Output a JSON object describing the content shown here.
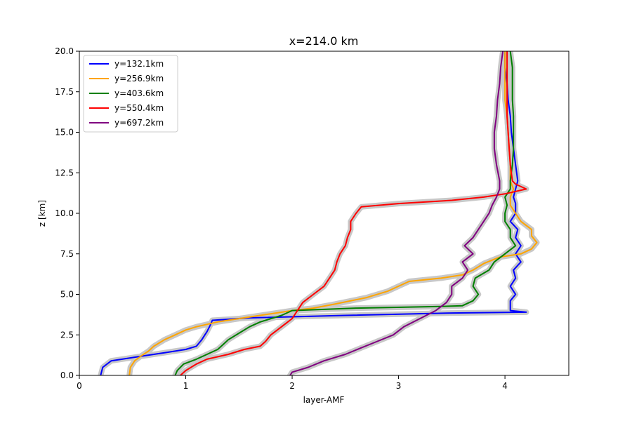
{
  "chart_data": {
    "type": "line",
    "title": "x=214.0 km",
    "xlabel": "layer-AMF",
    "ylabel": "z [km]",
    "xlim": [
      0,
      4.6
    ],
    "ylim": [
      0,
      20
    ],
    "xticks": [
      0,
      1,
      2,
      3,
      4
    ],
    "yticks": [
      0.0,
      2.5,
      5.0,
      7.5,
      10.0,
      12.5,
      15.0,
      17.5,
      20.0
    ],
    "xtick_labels": [
      "0",
      "1",
      "2",
      "3",
      "4"
    ],
    "ytick_labels": [
      "0.0",
      "2.5",
      "5.0",
      "7.5",
      "10.0",
      "12.5",
      "15.0",
      "17.5",
      "20.0"
    ],
    "grid": false,
    "legend_position": "upper-left",
    "uncertainty_band_color": "#c8c8c8",
    "series": [
      {
        "name": "y=132.1km",
        "color": "#0000ff",
        "points": [
          [
            0.2,
            0
          ],
          [
            0.22,
            0.5
          ],
          [
            0.3,
            0.9
          ],
          [
            0.6,
            1.2
          ],
          [
            0.8,
            1.4
          ],
          [
            1.0,
            1.6
          ],
          [
            1.1,
            1.8
          ],
          [
            1.15,
            2.2
          ],
          [
            1.2,
            2.7
          ],
          [
            1.23,
            3.1
          ],
          [
            1.25,
            3.4
          ],
          [
            1.6,
            3.55
          ],
          [
            2.5,
            3.7
          ],
          [
            3.5,
            3.85
          ],
          [
            4.2,
            3.9
          ],
          [
            4.05,
            4.0
          ],
          [
            4.05,
            4.6
          ],
          [
            4.1,
            5.0
          ],
          [
            4.05,
            5.5
          ],
          [
            4.1,
            6.0
          ],
          [
            4.08,
            6.5
          ],
          [
            4.15,
            7.0
          ],
          [
            4.1,
            7.5
          ],
          [
            4.15,
            8.0
          ],
          [
            4.1,
            8.5
          ],
          [
            4.12,
            9.0
          ],
          [
            4.05,
            9.5
          ],
          [
            4.1,
            10.0
          ],
          [
            4.1,
            10.6
          ],
          [
            4.08,
            11.0
          ],
          [
            4.1,
            11.5
          ],
          [
            4.12,
            12.0
          ],
          [
            4.1,
            13.0
          ],
          [
            4.08,
            14.0
          ],
          [
            4.06,
            15.0
          ],
          [
            4.05,
            16.0
          ],
          [
            4.03,
            17.0
          ],
          [
            4.02,
            18.0
          ],
          [
            4.0,
            19.0
          ],
          [
            4.0,
            20.0
          ]
        ]
      },
      {
        "name": "y=256.9km",
        "color": "#ffa500",
        "points": [
          [
            0.47,
            0
          ],
          [
            0.48,
            0.5
          ],
          [
            0.52,
            0.9
          ],
          [
            0.58,
            1.2
          ],
          [
            0.65,
            1.5
          ],
          [
            0.7,
            1.8
          ],
          [
            0.8,
            2.2
          ],
          [
            0.9,
            2.5
          ],
          [
            1.0,
            2.8
          ],
          [
            1.1,
            3.0
          ],
          [
            1.3,
            3.3
          ],
          [
            1.6,
            3.6
          ],
          [
            1.8,
            3.8
          ],
          [
            2.0,
            4.0
          ],
          [
            2.2,
            4.15
          ],
          [
            2.4,
            4.4
          ],
          [
            2.7,
            4.8
          ],
          [
            2.9,
            5.2
          ],
          [
            3.0,
            5.5
          ],
          [
            3.1,
            5.8
          ],
          [
            3.4,
            6.0
          ],
          [
            3.6,
            6.2
          ],
          [
            3.7,
            6.5
          ],
          [
            3.8,
            6.9
          ],
          [
            3.95,
            7.3
          ],
          [
            4.15,
            7.5
          ],
          [
            4.25,
            7.8
          ],
          [
            4.3,
            8.2
          ],
          [
            4.25,
            8.6
          ],
          [
            4.25,
            9.0
          ],
          [
            4.15,
            9.5
          ],
          [
            4.1,
            10.0
          ],
          [
            4.05,
            10.5
          ],
          [
            4.05,
            11.0
          ],
          [
            4.08,
            11.5
          ],
          [
            4.05,
            12.0
          ],
          [
            4.05,
            13.0
          ],
          [
            4.04,
            14.0
          ],
          [
            4.03,
            15.0
          ],
          [
            4.02,
            16.0
          ],
          [
            4.0,
            17.0
          ],
          [
            4.0,
            18.0
          ],
          [
            4.0,
            19.0
          ],
          [
            4.0,
            20.0
          ]
        ]
      },
      {
        "name": "y=403.6km",
        "color": "#008000",
        "points": [
          [
            0.9,
            0
          ],
          [
            0.92,
            0.3
          ],
          [
            0.98,
            0.7
          ],
          [
            1.1,
            1.0
          ],
          [
            1.2,
            1.3
          ],
          [
            1.3,
            1.6
          ],
          [
            1.35,
            1.9
          ],
          [
            1.4,
            2.2
          ],
          [
            1.5,
            2.6
          ],
          [
            1.6,
            3.0
          ],
          [
            1.7,
            3.3
          ],
          [
            1.9,
            3.7
          ],
          [
            2.0,
            4.0
          ],
          [
            2.6,
            4.15
          ],
          [
            3.4,
            4.25
          ],
          [
            3.6,
            4.3
          ],
          [
            3.7,
            4.6
          ],
          [
            3.75,
            5.0
          ],
          [
            3.7,
            5.5
          ],
          [
            3.72,
            6.0
          ],
          [
            3.85,
            6.5
          ],
          [
            3.9,
            7.0
          ],
          [
            4.0,
            7.5
          ],
          [
            4.1,
            8.0
          ],
          [
            4.05,
            8.5
          ],
          [
            4.05,
            9.0
          ],
          [
            4.0,
            9.5
          ],
          [
            4.0,
            10.0
          ],
          [
            4.02,
            10.5
          ],
          [
            4.0,
            11.0
          ],
          [
            4.05,
            11.5
          ],
          [
            4.05,
            12.0
          ],
          [
            4.07,
            13.0
          ],
          [
            4.08,
            14.0
          ],
          [
            4.08,
            15.0
          ],
          [
            4.08,
            16.0
          ],
          [
            4.07,
            17.0
          ],
          [
            4.07,
            18.0
          ],
          [
            4.07,
            19.0
          ],
          [
            4.05,
            20.0
          ]
        ]
      },
      {
        "name": "y=550.4km",
        "color": "#ff0000",
        "points": [
          [
            0.95,
            0
          ],
          [
            1.0,
            0.3
          ],
          [
            1.1,
            0.7
          ],
          [
            1.2,
            1.0
          ],
          [
            1.4,
            1.3
          ],
          [
            1.55,
            1.6
          ],
          [
            1.7,
            1.8
          ],
          [
            1.75,
            2.1
          ],
          [
            1.8,
            2.5
          ],
          [
            1.9,
            3.0
          ],
          [
            2.0,
            3.5
          ],
          [
            2.05,
            4.0
          ],
          [
            2.1,
            4.5
          ],
          [
            2.2,
            5.0
          ],
          [
            2.3,
            5.5
          ],
          [
            2.35,
            6.0
          ],
          [
            2.4,
            6.5
          ],
          [
            2.42,
            7.0
          ],
          [
            2.45,
            7.5
          ],
          [
            2.5,
            8.0
          ],
          [
            2.52,
            8.5
          ],
          [
            2.55,
            9.0
          ],
          [
            2.55,
            9.5
          ],
          [
            2.6,
            10.0
          ],
          [
            2.65,
            10.4
          ],
          [
            3.0,
            10.6
          ],
          [
            3.5,
            10.8
          ],
          [
            3.8,
            11.0
          ],
          [
            4.0,
            11.2
          ],
          [
            4.2,
            11.5
          ],
          [
            4.1,
            11.8
          ],
          [
            4.07,
            12.0
          ],
          [
            4.05,
            13.0
          ],
          [
            4.04,
            14.0
          ],
          [
            4.03,
            15.0
          ],
          [
            4.02,
            16.0
          ],
          [
            4.02,
            17.0
          ],
          [
            4.02,
            18.0
          ],
          [
            4.02,
            19.0
          ],
          [
            4.02,
            20.0
          ]
        ]
      },
      {
        "name": "y=697.2km",
        "color": "#800080",
        "points": [
          [
            1.98,
            0
          ],
          [
            2.0,
            0.2
          ],
          [
            2.15,
            0.5
          ],
          [
            2.3,
            0.9
          ],
          [
            2.5,
            1.3
          ],
          [
            2.65,
            1.7
          ],
          [
            2.8,
            2.1
          ],
          [
            2.95,
            2.5
          ],
          [
            3.05,
            3.0
          ],
          [
            3.2,
            3.5
          ],
          [
            3.35,
            4.0
          ],
          [
            3.45,
            4.5
          ],
          [
            3.5,
            5.0
          ],
          [
            3.5,
            5.5
          ],
          [
            3.6,
            6.0
          ],
          [
            3.65,
            6.5
          ],
          [
            3.6,
            7.0
          ],
          [
            3.7,
            7.5
          ],
          [
            3.62,
            8.0
          ],
          [
            3.7,
            8.5
          ],
          [
            3.75,
            9.0
          ],
          [
            3.8,
            9.5
          ],
          [
            3.85,
            10.0
          ],
          [
            3.88,
            10.5
          ],
          [
            3.92,
            11.0
          ],
          [
            3.95,
            11.5
          ],
          [
            3.95,
            12.0
          ],
          [
            3.92,
            13.0
          ],
          [
            3.9,
            14.0
          ],
          [
            3.9,
            15.0
          ],
          [
            3.92,
            16.0
          ],
          [
            3.93,
            17.0
          ],
          [
            3.95,
            18.0
          ],
          [
            3.96,
            19.0
          ],
          [
            3.98,
            20.0
          ]
        ]
      }
    ]
  }
}
